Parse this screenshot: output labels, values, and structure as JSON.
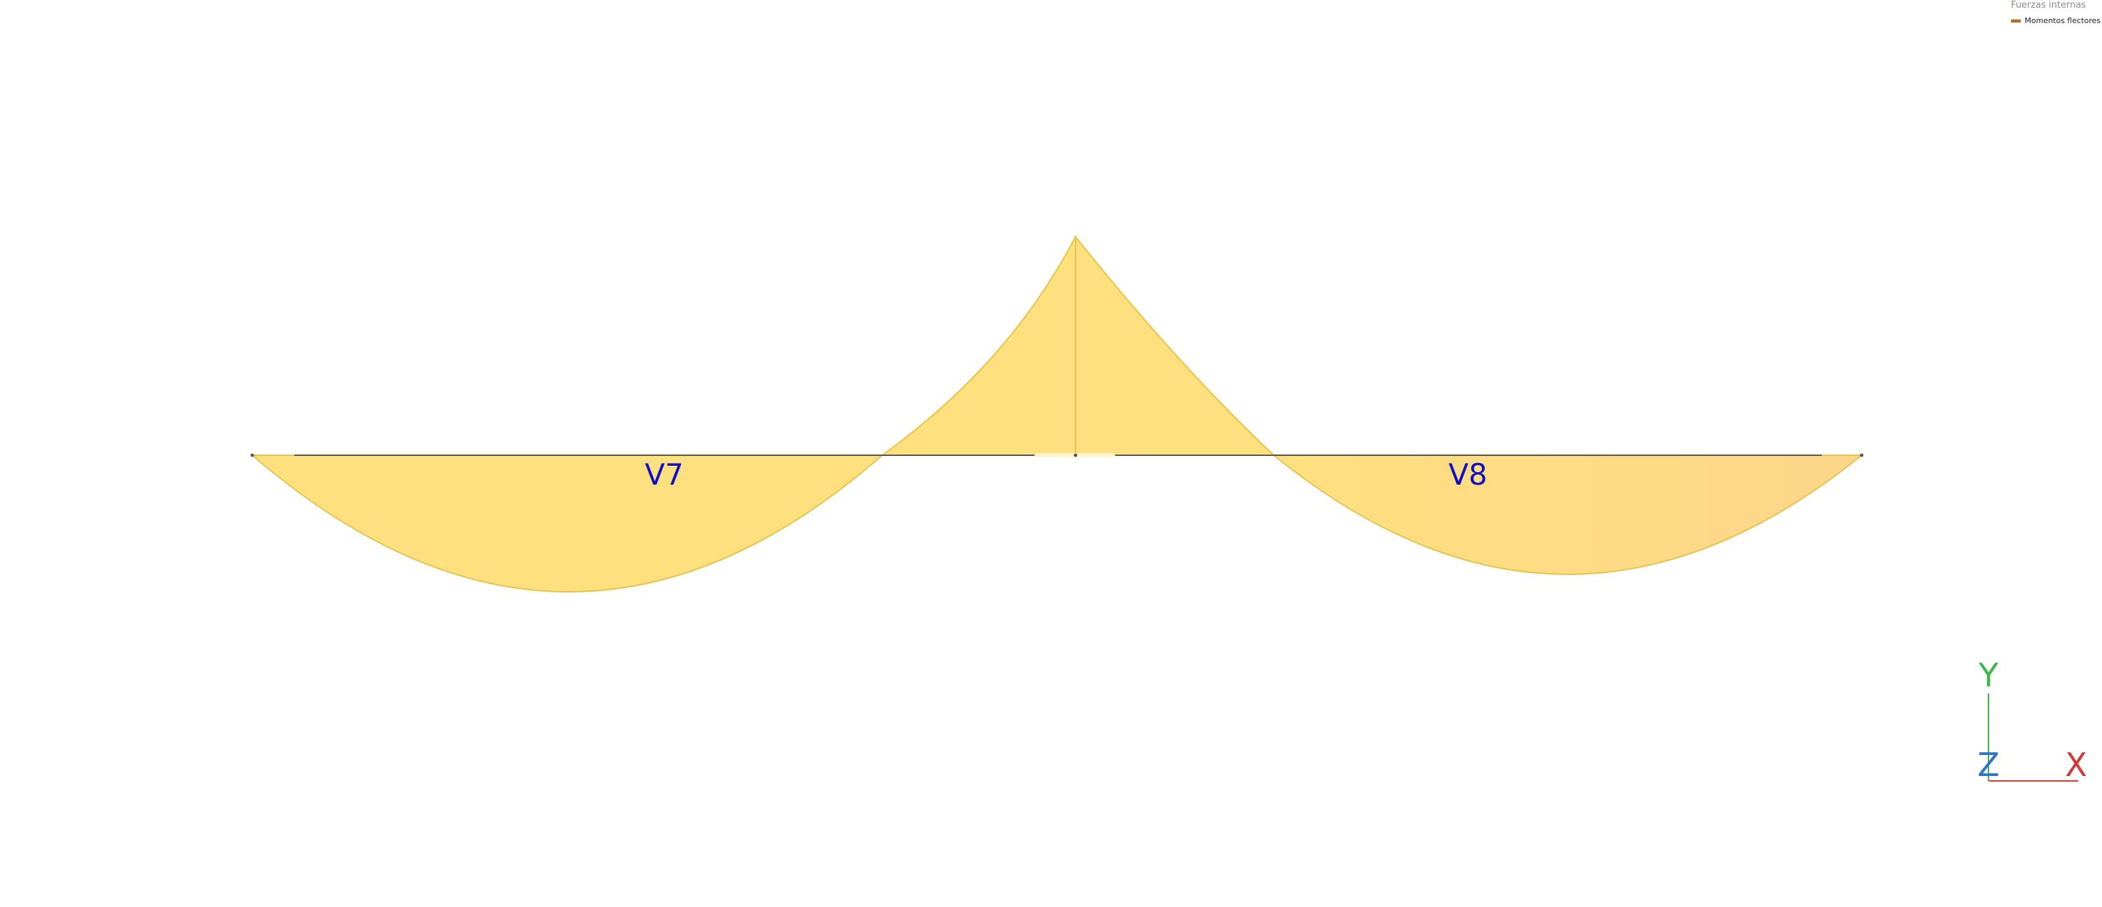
{
  "legend": {
    "title": "Fuerzas internas",
    "items": [
      {
        "label": "Momentos flectores",
        "color": "#d4891a"
      }
    ]
  },
  "beams": [
    {
      "label": "V7"
    },
    {
      "label": "V8"
    }
  ],
  "axes": {
    "x_label": "X",
    "y_label": "Y",
    "z_label": "Z",
    "x_color": "#d23a3a",
    "y_color": "#3cb84a",
    "z_color": "#2f74c6"
  },
  "colors": {
    "diagram_fill": "#ffe07f",
    "diagram_fill_right": "#fdd78a",
    "diagram_stroke": "#e6c44c",
    "beam_line": "#555555",
    "beam_label": "#1010c8"
  }
}
